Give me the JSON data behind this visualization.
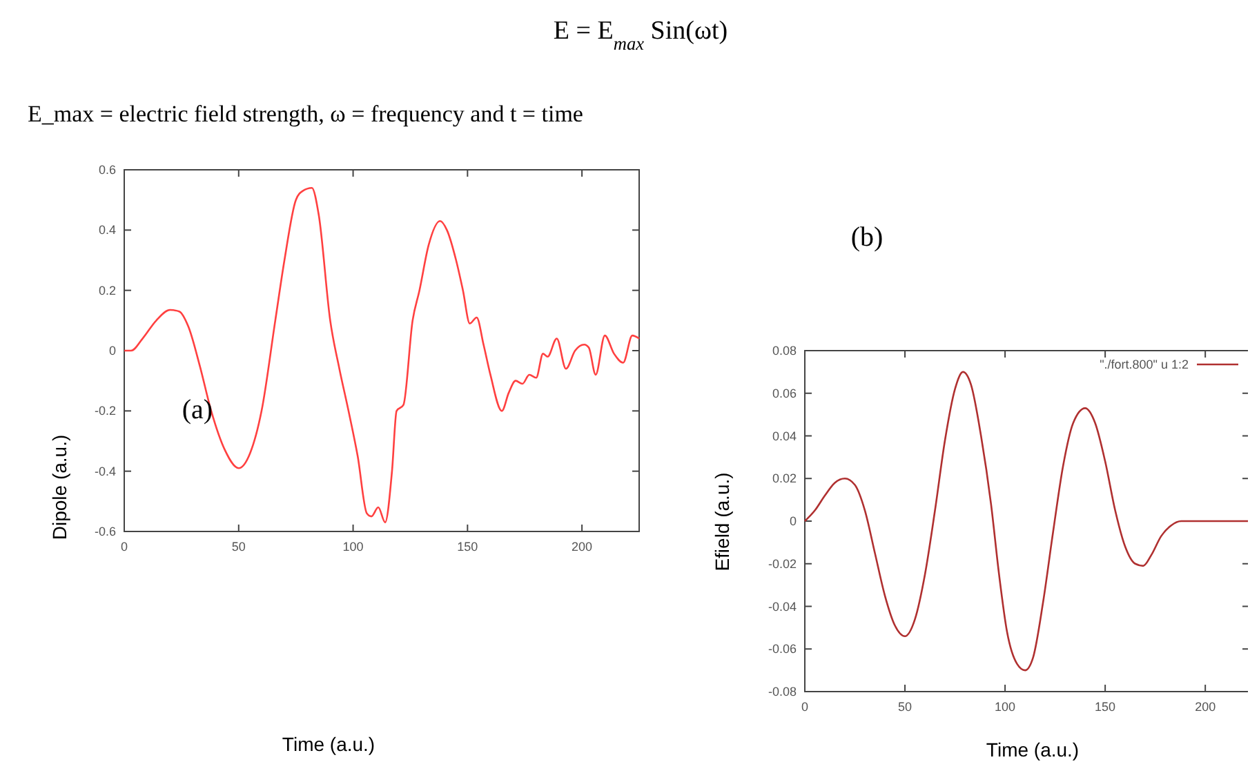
{
  "chart_data": [
    {
      "type": "line",
      "xlabel": "Time (a.u.)",
      "ylabel": "Dipole (a.u.)",
      "xlim": [
        0,
        225
      ],
      "ylim": [
        -0.6,
        0.6
      ],
      "xticks": [
        0,
        50,
        100,
        150,
        200
      ],
      "yticks": [
        -0.6,
        -0.4,
        -0.2,
        0,
        0.2,
        0.4,
        0.6
      ],
      "annotations": [
        "E = E$_{max}$ Sin(ωt)",
        "E_max = electric field strength, ω = frequency and t = time",
        "(a)"
      ],
      "series": [
        {
          "color": "#ff4040",
          "x": [
            0,
            3,
            8,
            14,
            20,
            24,
            28,
            33,
            38,
            44,
            50,
            55,
            60,
            66,
            70,
            75,
            78,
            82,
            85,
            90,
            94,
            98,
            102,
            106,
            108,
            111,
            114,
            117,
            119,
            122,
            126,
            129,
            133,
            138,
            141,
            145,
            148,
            151,
            154,
            157,
            160,
            165,
            168,
            171,
            174,
            177,
            180,
            183,
            185,
            189,
            193,
            197,
            201,
            203,
            206,
            210,
            214,
            218,
            222,
            225
          ],
          "values": [
            0,
            0,
            0.04,
            0.1,
            0.135,
            0.13,
            0.08,
            -0.05,
            -0.2,
            -0.33,
            -0.39,
            -0.34,
            -0.2,
            0.1,
            0.3,
            0.5,
            0.53,
            0.54,
            0.45,
            0.1,
            -0.06,
            -0.2,
            -0.35,
            -0.54,
            -0.55,
            -0.52,
            -0.57,
            -0.4,
            -0.2,
            -0.18,
            0.1,
            0.2,
            0.35,
            0.43,
            0.4,
            0.3,
            0.2,
            0.09,
            0.11,
            0.02,
            -0.08,
            -0.2,
            -0.14,
            -0.1,
            -0.11,
            -0.08,
            -0.09,
            -0.01,
            -0.02,
            0.04,
            -0.06,
            0,
            0.02,
            0.01,
            -0.08,
            0.05,
            -0.01,
            -0.04,
            0.05,
            0.04
          ]
        }
      ]
    },
    {
      "type": "line",
      "xlabel": "Time (a.u.)",
      "ylabel": "Efield (a.u.)",
      "xlim": [
        0,
        222
      ],
      "ylim": [
        -0.08,
        0.08
      ],
      "xticks": [
        0,
        50,
        100,
        150,
        200
      ],
      "yticks": [
        -0.08,
        -0.06,
        -0.04,
        -0.02,
        0,
        0.02,
        0.04,
        0.06,
        0.08
      ],
      "legend": "top right",
      "annotations": [
        "(b)"
      ],
      "series": [
        {
          "name": "\"./fort.800\" u 1:2",
          "color": "#b03030",
          "x": [
            0,
            5,
            10,
            15,
            20,
            25,
            30,
            35,
            40,
            45,
            50,
            55,
            60,
            65,
            70,
            75,
            79,
            83,
            88,
            93,
            97,
            101,
            106,
            110,
            114,
            119,
            124,
            129,
            134,
            140,
            145,
            150,
            155,
            160,
            165,
            169,
            173,
            178,
            183,
            188,
            222
          ],
          "values": [
            0,
            0.005,
            0.012,
            0.018,
            0.02,
            0.017,
            0.005,
            -0.015,
            -0.035,
            -0.049,
            -0.054,
            -0.046,
            -0.025,
            0.005,
            0.038,
            0.062,
            0.07,
            0.064,
            0.04,
            0.008,
            -0.025,
            -0.052,
            -0.067,
            -0.07,
            -0.064,
            -0.038,
            -0.005,
            0.026,
            0.046,
            0.053,
            0.046,
            0.028,
            0.005,
            -0.012,
            -0.02,
            -0.021,
            -0.016,
            -0.007,
            -0.002,
            0,
            0
          ]
        }
      ]
    }
  ]
}
